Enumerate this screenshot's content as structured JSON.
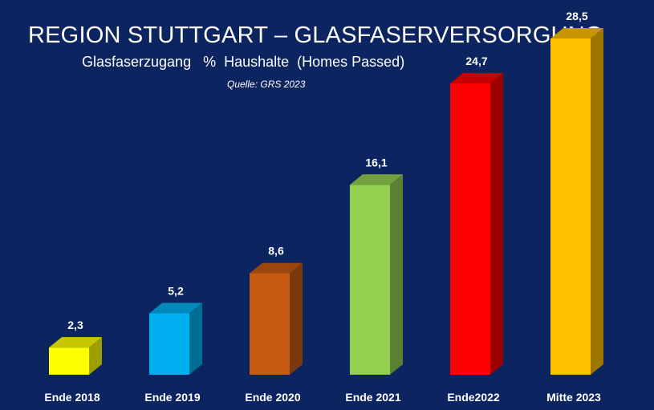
{
  "chart_data": {
    "type": "bar",
    "title": "REGION STUTTGART – GLASFASERVERSORGUNG",
    "subtitle": "Glasfaserzugang   %  Haushalte  (Homes Passed)",
    "source": "Quelle: GRS 2023",
    "categories": [
      "Ende 2018",
      "Ende 2019",
      "Ende 2020",
      "Ende 2021",
      "Ende2022",
      "Mitte 2023"
    ],
    "values": [
      2.3,
      5.2,
      8.6,
      16.1,
      24.7,
      28.5
    ],
    "value_labels": [
      "2,3",
      "5,2",
      "8,6",
      "16,1",
      "24,7",
      "28,5"
    ],
    "colors": [
      "#ffff00",
      "#00b0f0",
      "#c55a11",
      "#92d050",
      "#ff0000",
      "#ffc000"
    ],
    "ylim": [
      0,
      28.5
    ],
    "grid": false,
    "legend": "none",
    "background": "#0c2460"
  }
}
